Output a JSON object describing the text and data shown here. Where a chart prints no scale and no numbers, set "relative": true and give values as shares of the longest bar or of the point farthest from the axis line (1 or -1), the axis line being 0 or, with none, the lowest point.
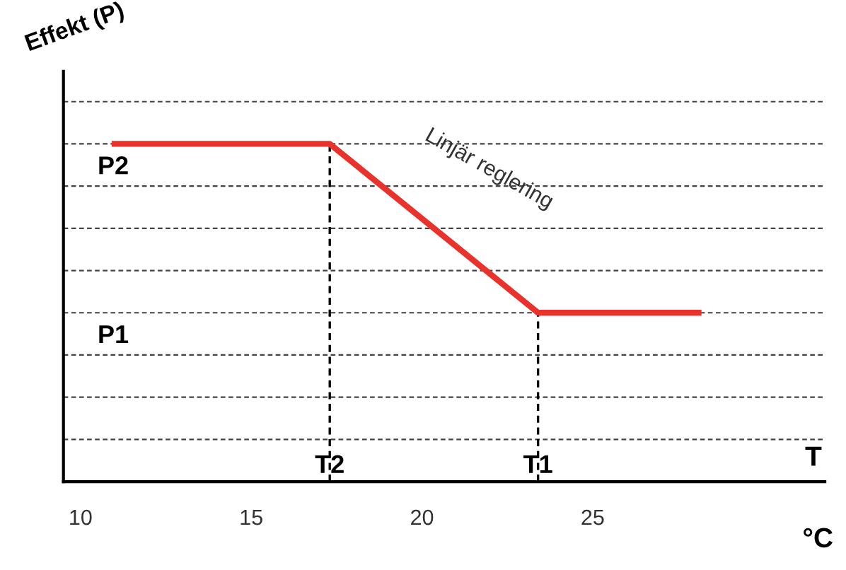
{
  "chart_data": {
    "type": "line",
    "relative": true,
    "ylabel": "Effekt (P)",
    "xlabel": "T",
    "x": [
      11,
      17.3,
      23.4,
      28.1
    ],
    "series": [
      {
        "color": "#e8322b",
        "values": [
          1,
          1,
          0.5,
          0.5
        ]
      }
    ],
    "xlim": [
      9.5,
      31.8
    ],
    "xticks": [
      10,
      15,
      20,
      25
    ],
    "ref_lines": [
      {
        "axis": "x",
        "value": 17.3,
        "label": "T2"
      },
      {
        "axis": "x",
        "value": 23.4,
        "label": "T1"
      },
      {
        "axis": "y",
        "value": 0.125,
        "color": "#444444"
      },
      {
        "axis": "y",
        "value": 0.25,
        "color": "#444444"
      },
      {
        "axis": "y",
        "value": 0.375,
        "color": "#444444"
      },
      {
        "axis": "y",
        "value": 0.5,
        "color": "#444444"
      },
      {
        "axis": "y",
        "value": 0.625,
        "color": "#444444"
      },
      {
        "axis": "y",
        "value": 0.75,
        "color": "#444444"
      },
      {
        "axis": "y",
        "value": 0.875,
        "color": "#444444"
      },
      {
        "axis": "y",
        "value": 1,
        "color": "#444444"
      },
      {
        "axis": "y",
        "value": 1.125,
        "color": "#444444"
      }
    ],
    "annotations": [
      {
        "text": "P2",
        "x": 10.5,
        "y": 1
      },
      {
        "text": "P1",
        "x": 10.5,
        "y": 0.5
      },
      "Linjär reglering",
      "°C"
    ]
  }
}
